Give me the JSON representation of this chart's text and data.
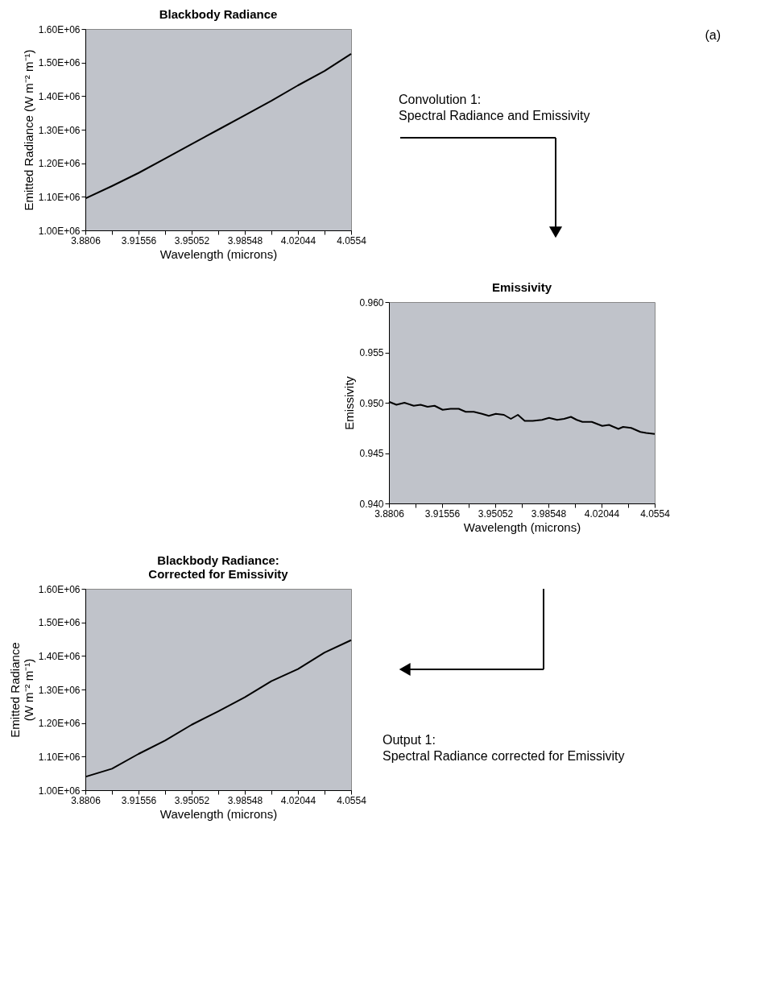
{
  "chart_data": [
    {
      "type": "line",
      "title": "Blackbody Radiance",
      "xlabel": "Wavelength (microns)",
      "ylabel": "Emitted Radiance (W m⁻² m⁻¹)",
      "grid": false,
      "annotations": [
        "(a)",
        "Convolution 1:\nSpectral Radiance and Emissivity"
      ],
      "x": [
        3.8806,
        3.89808,
        3.91556,
        3.93304,
        3.95052,
        3.968,
        3.98548,
        4.00296,
        4.02044,
        4.03792,
        4.0554
      ],
      "series": [
        {
          "color": "#000000",
          "values": [
            1095000,
            1132000,
            1171000,
            1214000,
            1257000,
            1300000,
            1343000,
            1386000,
            1432000,
            1475000,
            1526000
          ]
        }
      ],
      "xlim": [
        3.8806,
        4.0554
      ],
      "xticks": [
        3.8806,
        {
          "value": 3.89808,
          "label": null
        },
        3.91556,
        {
          "value": 3.93304,
          "label": null
        },
        3.95052,
        {
          "value": 3.968,
          "label": null
        },
        3.98548,
        {
          "value": 4.00296,
          "label": null
        },
        4.02044,
        {
          "value": 4.03792,
          "label": null
        },
        4.0554
      ],
      "ylim": [
        1000000,
        1600000
      ],
      "yticks": [
        {
          "value": 1000000,
          "label": "1.00E+06"
        },
        {
          "value": 1100000,
          "label": "1.10E+06"
        },
        {
          "value": 1200000,
          "label": "1.20E+06"
        },
        {
          "value": 1300000,
          "label": "1.30E+06"
        },
        {
          "value": 1400000,
          "label": "1.40E+06"
        },
        {
          "value": 1500000,
          "label": "1.50E+06"
        },
        {
          "value": 1600000,
          "label": "1.60E+06"
        }
      ]
    },
    {
      "type": "line",
      "title": "Emissivity",
      "xlabel": "Wavelength (microns)",
      "ylabel": "Emissivity",
      "grid": false,
      "x": [
        3.8806,
        3.8855,
        3.8908,
        3.8969,
        3.9014,
        3.906,
        3.9106,
        3.9159,
        3.9212,
        3.9265,
        3.9311,
        3.9364,
        3.9418,
        3.9463,
        3.9509,
        3.9562,
        3.9608,
        3.9654,
        3.9699,
        3.9752,
        3.9813,
        3.9859,
        3.9912,
        3.9958,
        4.0003,
        4.0041,
        4.0079,
        4.014,
        4.0209,
        4.0254,
        4.0315,
        4.0346,
        4.0399,
        4.046,
        4.0498,
        4.0554
      ],
      "series": [
        {
          "color": "#000000",
          "values": [
            0.9501,
            0.9498,
            0.95,
            0.9497,
            0.9498,
            0.9496,
            0.9497,
            0.9493,
            0.9494,
            0.9494,
            0.9491,
            0.9491,
            0.9489,
            0.9487,
            0.9489,
            0.9488,
            0.9484,
            0.9488,
            0.9482,
            0.9482,
            0.9483,
            0.9485,
            0.9483,
            0.9484,
            0.9486,
            0.9483,
            0.9481,
            0.9481,
            0.9477,
            0.9478,
            0.9474,
            0.9476,
            0.9475,
            0.9471,
            0.947,
            0.9469
          ]
        }
      ],
      "xlim": [
        3.8806,
        4.0554
      ],
      "xticks": [
        3.8806,
        {
          "value": 3.89808,
          "label": null
        },
        3.91556,
        {
          "value": 3.93304,
          "label": null
        },
        3.95052,
        {
          "value": 3.968,
          "label": null
        },
        3.98548,
        {
          "value": 4.00296,
          "label": null
        },
        4.02044,
        {
          "value": 4.03792,
          "label": null
        },
        4.0554
      ],
      "ylim": [
        0.94,
        0.96
      ],
      "yticks": [
        {
          "value": 0.94,
          "label": "0.940"
        },
        {
          "value": 0.945,
          "label": "0.945"
        },
        {
          "value": 0.95,
          "label": "0.950"
        },
        {
          "value": 0.955,
          "label": "0.955"
        },
        {
          "value": 0.96,
          "label": "0.960"
        }
      ]
    },
    {
      "type": "line",
      "title": "Blackbody Radiance:\nCorrected for Emissivity",
      "xlabel": "Wavelength (microns)",
      "ylabel": "Emitted Radiance\n(W m⁻² m⁻¹)",
      "grid": false,
      "annotations": [
        "Output 1:\nSpectral Radiance corrected for Emissivity"
      ],
      "x": [
        3.8806,
        3.89808,
        3.91556,
        3.93304,
        3.95052,
        3.968,
        3.98548,
        4.00296,
        4.02044,
        4.03792,
        4.0554
      ],
      "series": [
        {
          "color": "#000000",
          "values": [
            1040000,
            1064000,
            1108000,
            1148000,
            1195000,
            1235000,
            1277000,
            1325000,
            1361000,
            1410000,
            1447000
          ]
        }
      ],
      "xlim": [
        3.8806,
        4.0554
      ],
      "xticks": [
        3.8806,
        {
          "value": 3.89808,
          "label": null
        },
        3.91556,
        {
          "value": 3.93304,
          "label": null
        },
        3.95052,
        {
          "value": 3.968,
          "label": null
        },
        3.98548,
        {
          "value": 4.00296,
          "label": null
        },
        4.02044,
        {
          "value": 4.03792,
          "label": null
        },
        4.0554
      ],
      "ylim": [
        1000000,
        1600000
      ],
      "yticks": [
        {
          "value": 1000000,
          "label": "1.00E+06"
        },
        {
          "value": 1100000,
          "label": "1.10E+06"
        },
        {
          "value": 1200000,
          "label": "1.20E+06"
        },
        {
          "value": 1300000,
          "label": "1.30E+06"
        },
        {
          "value": 1400000,
          "label": "1.40E+06"
        },
        {
          "value": 1500000,
          "label": "1.50E+06"
        },
        {
          "value": 1600000,
          "label": "1.60E+06"
        }
      ]
    }
  ]
}
